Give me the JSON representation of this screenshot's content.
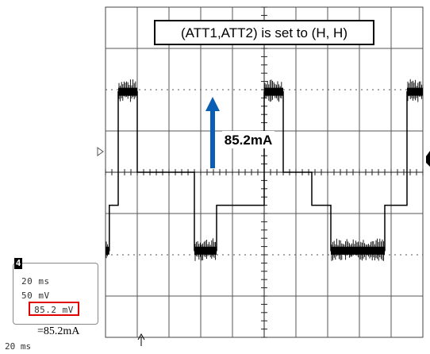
{
  "chart_data": {
    "type": "line",
    "title": "(ATT1,ATT2) is set to (H, H)",
    "xlabel": "",
    "ylabel": "",
    "grid": true,
    "x_unit": "div",
    "y_unit": "div",
    "xlim": [
      0,
      10
    ],
    "ylim": [
      -4,
      4
    ],
    "series": [
      {
        "x": [
          -1,
          0.12,
          0.12,
          0.4,
          0.4,
          1.0,
          1.0,
          2.8,
          2.8,
          3.5,
          3.5,
          5.0,
          5.0,
          5.6,
          5.6,
          6.5,
          6.5,
          7.1,
          7.1,
          8.8,
          8.8,
          9.5,
          9.5,
          11
        ],
        "y": [
          -1.9,
          -1.9,
          -0.8,
          -0.8,
          1.95,
          1.95,
          0,
          0,
          -1.9,
          -1.9,
          -0.8,
          -0.8,
          1.95,
          1.95,
          0,
          0,
          -0.8,
          -0.8,
          -1.9,
          -1.9,
          -0.8,
          -0.8,
          1.95,
          1.95
        ]
      }
    ],
    "annotation": {
      "text": "85.2mA"
    },
    "readout": {
      "channel": "4",
      "time_div": "20 ms",
      "volt_div": "50 mV",
      "measurement": "85.2 mV",
      "current": "=85.2mA",
      "timebase": "20 ms"
    }
  }
}
